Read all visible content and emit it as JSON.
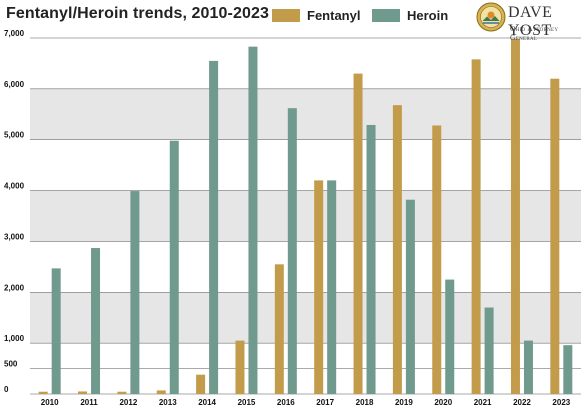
{
  "chart_data": {
    "type": "bar",
    "title": "Fentanyl/Heroin trends, 2010-2023",
    "xlabel": "",
    "ylabel": "",
    "ylim": [
      0,
      7000
    ],
    "yticks": [
      {
        "value": 0,
        "label": "0"
      },
      {
        "value": 500,
        "label": "500"
      },
      {
        "value": 1000,
        "label": "1,000"
      },
      {
        "value": 2000,
        "label": "2,000"
      },
      {
        "value": 3000,
        "label": "3,000"
      },
      {
        "value": 4000,
        "label": "4,000"
      },
      {
        "value": 5000,
        "label": "5,000"
      },
      {
        "value": 6000,
        "label": "6,000"
      },
      {
        "value": 7000,
        "label": "7,000"
      }
    ],
    "grid": true,
    "legend_position": "top-center",
    "categories": [
      "2010",
      "2011",
      "2012",
      "2013",
      "2014",
      "2015",
      "2016",
      "2017",
      "2018",
      "2019",
      "2020",
      "2021",
      "2022",
      "2023"
    ],
    "series": [
      {
        "name": "Fentanyl",
        "color": "#c39c4b",
        "values": [
          45,
          50,
          45,
          70,
          380,
          1050,
          2550,
          4200,
          6300,
          5680,
          5280,
          6580,
          6980,
          6200
        ]
      },
      {
        "name": "Heroin",
        "color": "#6f9a8d",
        "values": [
          2470,
          2870,
          3990,
          4980,
          6550,
          6830,
          5620,
          4200,
          5290,
          3820,
          2250,
          1700,
          1050,
          960
        ]
      }
    ]
  },
  "logo": {
    "name": "Dave Yost",
    "subtitle": "Ohio Attorney General"
  }
}
